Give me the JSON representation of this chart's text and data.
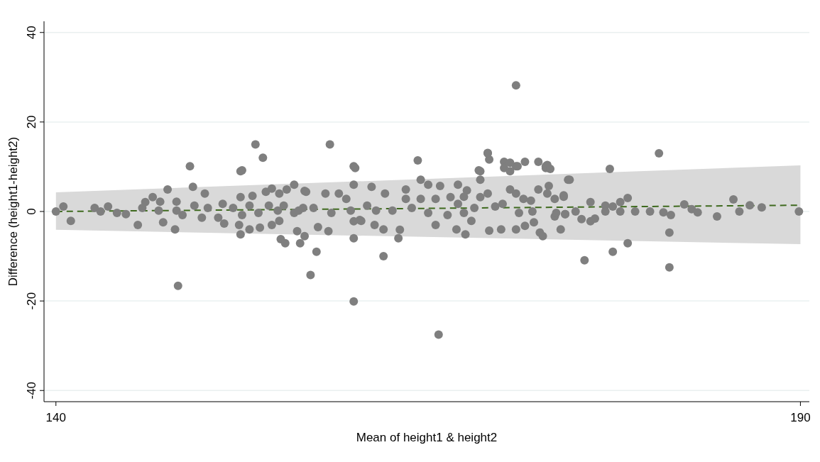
{
  "chart_data": {
    "type": "scatter",
    "xlabel": "Mean of height1 & height2",
    "ylabel": "Difference (height1-height2)",
    "xlim": [
      139.2,
      190.6
    ],
    "ylim": [
      -42.5,
      42.5
    ],
    "xticks": [
      140,
      190
    ],
    "yticks": [
      -40,
      -20,
      0,
      20,
      40
    ],
    "grid": "y",
    "marker": "circle",
    "series": [
      {
        "type": "line",
        "color": "#3f6a1f",
        "line_style": "dashed",
        "marker": "none",
        "x": [
          140,
          190
        ],
        "values": [
          0,
          1.4
        ],
        "lower": [
          -4.1,
          -7.3
        ],
        "upper": [
          4.3,
          10.3
        ]
      },
      {
        "color": "#7f7f7f",
        "x": [
          170.9,
          165.7,
          160.0,
          148.2,
          157.1,
          181.2,
          175.5,
          162.0,
          157.5,
          177.4,
          178.4,
          181.2,
          153.4,
          158.4,
          153.9,
          180.5,
          169.0,
          149.0,
          160.0,
          170.1,
          170.1,
          170.9,
          171.5,
          172.9,
          177.2,
          152.5,
          168.4,
          164.3,
          169.1,
          173.0,
          155.1,
          155.4,
          156.4,
          156.7,
          152.4,
          145.5,
          148.0,
          147.2,
          151.3,
          153.0,
          153.7,
          154.5,
          155.0,
          156.2,
          141.0,
          149.2,
          147.5,
          150.0,
          146.5,
          146.0,
          148.1,
          147.0,
          152.4,
          154.5,
          155.0,
          155.5,
          156.0,
          156.7,
          154.1,
          153.2,
          152.4,
          140.0,
          140.5,
          142.6,
          143.0,
          143.5,
          144.1,
          144.7,
          145.8,
          146.9,
          148.1,
          148.5,
          149.3,
          149.8,
          150.2,
          150.9,
          151.2,
          151.9,
          152.5,
          153.0,
          153.6,
          154.3,
          154.9,
          155.3,
          156.0,
          156.6,
          152.3,
          160.1,
          160.0,
          160.0,
          163.0,
          163.1,
          164.5,
          165.0,
          165.8,
          165.5,
          166.3,
          167.0,
          166.9,
          167.5,
          167.9,
          167.6,
          168.5,
          168.5,
          169.0,
          169.0,
          168.5,
          169.1,
          169.9,
          169.5,
          170.5,
          170.5,
          171.0,
          170.5,
          170.9,
          171.5,
          172.1,
          172.4,
          172.4,
          172.9,
          173.2,
          173.1,
          172.5,
          172.7,
          173.9,
          173.5,
          174.4,
          156.3,
          156.8,
          158.1,
          159.0,
          159.5,
          157.6,
          158.3,
          157.3,
          158.5,
          160.4,
          161.2,
          160.9,
          161.5,
          162.1,
          162.0,
          161.4,
          162.6,
          163.5,
          163.5,
          163.9,
          164.5,
          165.0,
          165.5,
          166.5,
          167.0,
          167.4,
          168.1,
          170.0,
          170.9,
          171.4,
          171.9,
          173.0,
          173.5,
          174.1,
          174.2,
          172.0,
          171.1,
          167.4,
          159.8,
          160.0,
          160.5,
          174.5,
          174.1,
          175.9,
          178.4,
          177.9,
          177.4,
          176.9,
          176.9,
          177.9,
          178.9,
          179.9,
          180.8,
          181.3,
          175.3,
          175.9,
          176.2,
          174.9,
          174.2,
          182.2,
          182.7,
          183.1,
          184.4,
          185.5,
          185.9,
          186.6,
          187.4,
          189.9,
          173.6
        ],
        "values": [
          28.2,
          -27.5,
          -20.1,
          -16.6,
          -14.2,
          -12.5,
          -10.9,
          -10.0,
          -9.0,
          -9.0,
          -7.1,
          -4.7,
          15.0,
          15.0,
          12.0,
          13.0,
          13.0,
          10.1,
          10.1,
          11.1,
          9.7,
          10.1,
          11.1,
          9.7,
          9.5,
          9.2,
          9.2,
          11.4,
          11.6,
          10.4,
          -6.2,
          -7.1,
          -7.1,
          -5.5,
          -5.1,
          -3.0,
          -4.0,
          -2.4,
          -2.7,
          -4.0,
          -3.6,
          -3.0,
          -2.1,
          -4.4,
          -2.1,
          5.5,
          4.9,
          4.0,
          3.2,
          2.1,
          2.2,
          2.2,
          9.0,
          5.1,
          4.0,
          4.9,
          6.0,
          4.6,
          4.4,
          3.5,
          3.2,
          0,
          1.1,
          0.8,
          0,
          1.1,
          -0.3,
          -0.6,
          0.8,
          0.2,
          0.2,
          -0.8,
          1.3,
          -1.4,
          0.8,
          -1.4,
          1.7,
          0.8,
          -0.8,
          1.3,
          -0.3,
          1.3,
          0.2,
          1.3,
          -0.3,
          0.8,
          -3.0,
          9.7,
          6.0,
          -6.0,
          -6.0,
          -4.1,
          7.1,
          6.0,
          5.7,
          -3.0,
          -0.8,
          6.0,
          -4.0,
          -5.1,
          -2.1,
          4.7,
          9.0,
          7.1,
          13.1,
          4.0,
          3.2,
          -4.3,
          -4.0,
          1.1,
          10.9,
          9.0,
          10.1,
          4.9,
          -4.0,
          -3.2,
          -2.4,
          4.9,
          11.1,
          10.1,
          9.5,
          5.7,
          -4.7,
          -5.5,
          -4.0,
          -1.1,
          7.1,
          0.2,
          4.4,
          4.0,
          4.0,
          2.8,
          -3.5,
          -4.4,
          0.8,
          -0.3,
          -1.9,
          5.5,
          1.3,
          0.2,
          4.0,
          -4.0,
          -3.0,
          0.2,
          4.9,
          2.8,
          0.8,
          2.8,
          -0.3,
          2.8,
          3.2,
          1.7,
          3.3,
          0.8,
          1.7,
          4.0,
          2.8,
          2.4,
          4.0,
          2.8,
          3.3,
          -0.6,
          0,
          -0.3,
          -0.3,
          0.2,
          -2.2,
          -2.1,
          7.1,
          3.6,
          2.1,
          3.0,
          2.1,
          1.1,
          1.3,
          0,
          0,
          0,
          0,
          -0.2,
          -0.8,
          -1.7,
          -2.2,
          -1.6,
          0,
          -0.6,
          1.6,
          0.5,
          -0.2,
          -1.1,
          2.7,
          0,
          1.4,
          0.9,
          0,
          -0.3
        ]
      }
    ]
  }
}
